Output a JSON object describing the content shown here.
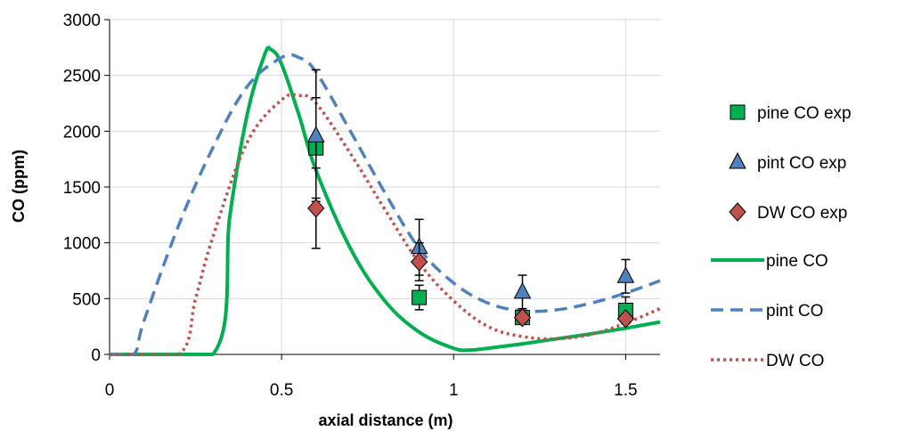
{
  "chart_data": {
    "type": "line",
    "title": "",
    "xlabel": "axial distance (m)",
    "ylabel": "CO (ppm)",
    "xlim": [
      0,
      1.6
    ],
    "ylim": [
      0,
      3000
    ],
    "x_ticks": [
      "0",
      "0.5",
      "1",
      "1.5"
    ],
    "y_ticks": [
      "0",
      "500",
      "1000",
      "1500",
      "2000",
      "2500",
      "3000"
    ],
    "grid": "vertical and horizontal major gridlines",
    "legend_position": "right",
    "colors": {
      "pine": "#00b050",
      "pint": "#4f81bd",
      "dw": "#c0504d",
      "pine_marker": "#00b050",
      "pint_marker": "#4f81bd",
      "dw_marker": "#c0504d"
    },
    "scatter_series": [
      {
        "name": "pine CO exp",
        "marker": "square",
        "points": [
          {
            "x": 0.6,
            "y": 1850,
            "err": 450
          },
          {
            "x": 0.9,
            "y": 510,
            "err": 110
          },
          {
            "x": 1.2,
            "y": 330,
            "err": 0
          },
          {
            "x": 1.5,
            "y": 395,
            "err": 120
          }
        ]
      },
      {
        "name": "pint CO exp",
        "marker": "triangle",
        "points": [
          {
            "x": 0.6,
            "y": 1960,
            "err": 590
          },
          {
            "x": 0.9,
            "y": 960,
            "err": 250
          },
          {
            "x": 1.2,
            "y": 560,
            "err": 150
          },
          {
            "x": 1.5,
            "y": 700,
            "err": 150
          }
        ]
      },
      {
        "name": "DW CO exp",
        "marker": "diamond",
        "points": [
          {
            "x": 0.6,
            "y": 1310,
            "err": 360
          },
          {
            "x": 0.9,
            "y": 830,
            "err": 170
          },
          {
            "x": 1.2,
            "y": 330,
            "err": 0
          },
          {
            "x": 1.5,
            "y": 320,
            "err": 0
          }
        ]
      }
    ],
    "line_series": [
      {
        "name": "pine CO",
        "style": "solid",
        "x": [
          0,
          0.3,
          0.35,
          0.4,
          0.45,
          0.47,
          0.5,
          0.55,
          0.6,
          0.7,
          0.8,
          0.9,
          1.0,
          1.05,
          1.1,
          1.2,
          1.3,
          1.4,
          1.5,
          1.6
        ],
        "y": [
          0,
          0,
          1250,
          2150,
          2680,
          2730,
          2600,
          2150,
          1650,
          950,
          480,
          200,
          55,
          40,
          55,
          95,
          140,
          185,
          235,
          290
        ]
      },
      {
        "name": "pint CO",
        "style": "dashed",
        "x": [
          0,
          0.07,
          0.1,
          0.2,
          0.3,
          0.4,
          0.5,
          0.55,
          0.6,
          0.7,
          0.8,
          0.9,
          1.0,
          1.1,
          1.2,
          1.3,
          1.4,
          1.5,
          1.6
        ],
        "y": [
          0,
          0,
          300,
          1150,
          1850,
          2400,
          2660,
          2660,
          2530,
          2000,
          1450,
          950,
          640,
          460,
          390,
          400,
          460,
          550,
          660
        ]
      },
      {
        "name": "DW CO",
        "style": "dotted",
        "x": [
          0,
          0.2,
          0.25,
          0.3,
          0.4,
          0.5,
          0.55,
          0.6,
          0.7,
          0.8,
          0.9,
          1.0,
          1.1,
          1.2,
          1.3,
          1.4,
          1.5,
          1.6
        ],
        "y": [
          0,
          0,
          500,
          1050,
          1900,
          2280,
          2320,
          2250,
          1800,
          1300,
          820,
          480,
          250,
          160,
          140,
          180,
          280,
          410
        ]
      }
    ]
  }
}
